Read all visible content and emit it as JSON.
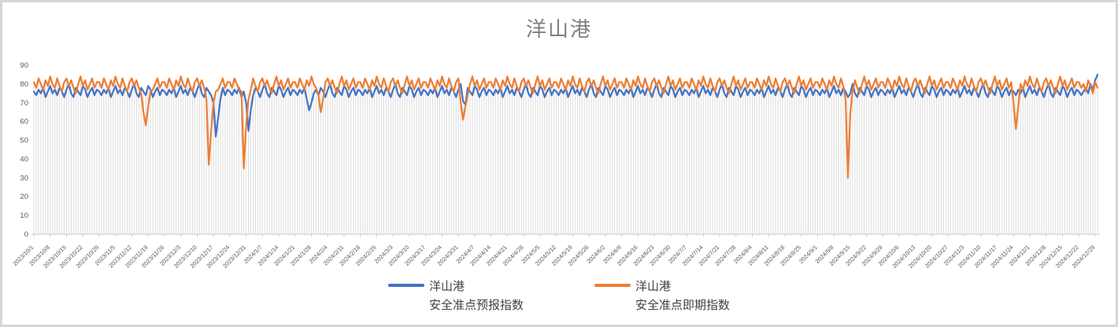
{
  "chart": {
    "title": "洋山港"
  },
  "chart_data": {
    "type": "line",
    "title": "洋山港",
    "x_frequency": "daily",
    "x_start": "2023/10/1",
    "x_end": "2024/12/31",
    "ylim": [
      0,
      90
    ],
    "y_tick_step": 10,
    "grid": "vertical drop lines at each daily point, no horizontal gridlines",
    "legend_position": "bottom-center",
    "drop_line_color": "#dcdcdc",
    "axis_color": "#c9c9c9",
    "tick_label_color": "#595959",
    "x_tick_labels": [
      "2023/10/1",
      "2023/10/8",
      "2023/10/15",
      "2023/10/22",
      "2023/10/29",
      "2023/11/5",
      "2023/11/12",
      "2023/11/19",
      "2023/11/26",
      "2023/12/3",
      "2023/12/10",
      "2023/12/17",
      "2023/12/24",
      "2023/12/31",
      "2024/1/7",
      "2024/1/14",
      "2024/1/21",
      "2024/1/28",
      "2024/2/4",
      "2024/2/11",
      "2024/2/18",
      "2024/2/25",
      "2024/3/3",
      "2024/3/10",
      "2024/3/17",
      "2024/3/24",
      "2024/3/31",
      "2024/4/7",
      "2024/4/14",
      "2024/4/21",
      "2024/4/28",
      "2024/5/5",
      "2024/5/12",
      "2024/5/19",
      "2024/5/26",
      "2024/6/2",
      "2024/6/9",
      "2024/6/16",
      "2024/6/23",
      "2024/6/30",
      "2024/7/7",
      "2024/7/14",
      "2024/7/21",
      "2024/7/28",
      "2024/8/4",
      "2024/8/11",
      "2024/8/18",
      "2024/8/25",
      "2024/9/1",
      "2024/9/8",
      "2024/9/15",
      "2024/9/22",
      "2024/9/29",
      "2024/10/6",
      "2024/10/13",
      "2024/10/20",
      "2024/10/27",
      "2024/11/3",
      "2024/11/10",
      "2024/11/17",
      "2024/11/24",
      "2024/12/1",
      "2024/12/8",
      "2024/12/15",
      "2024/12/22",
      "2024/12/29"
    ],
    "series": [
      {
        "name": "洋山港 安全准点预报指数",
        "name_line1": "洋山港",
        "name_line2": "安全准点预报指数",
        "color": "#4472C4",
        "values": [
          76,
          74,
          77,
          75,
          78,
          73,
          76,
          79,
          75,
          77,
          74,
          78,
          76,
          73,
          77,
          80,
          75,
          73,
          78,
          76,
          74,
          79,
          77,
          73,
          76,
          78,
          74,
          77,
          76,
          74,
          77,
          75,
          78,
          73,
          76,
          79,
          75,
          77,
          74,
          78,
          76,
          73,
          77,
          80,
          75,
          73,
          78,
          76,
          74,
          79,
          77,
          73,
          76,
          78,
          74,
          77,
          76,
          74,
          77,
          75,
          78,
          73,
          76,
          79,
          75,
          77,
          74,
          78,
          76,
          73,
          77,
          80,
          75,
          73,
          78,
          76,
          74,
          70,
          52,
          62,
          72,
          78,
          74,
          77,
          76,
          74,
          77,
          75,
          78,
          73,
          76,
          70,
          55,
          66,
          74,
          78,
          76,
          73,
          77,
          80,
          75,
          73,
          78,
          76,
          74,
          79,
          77,
          73,
          76,
          78,
          74,
          77,
          76,
          74,
          77,
          75,
          78,
          72,
          66,
          70,
          75,
          77,
          74,
          78,
          76,
          73,
          77,
          80,
          75,
          73,
          78,
          76,
          74,
          79,
          77,
          73,
          76,
          78,
          74,
          77,
          76,
          74,
          77,
          75,
          78,
          73,
          76,
          79,
          75,
          77,
          74,
          78,
          76,
          73,
          77,
          80,
          75,
          73,
          78,
          76,
          74,
          79,
          77,
          73,
          76,
          78,
          74,
          77,
          76,
          74,
          77,
          75,
          78,
          73,
          76,
          79,
          75,
          77,
          74,
          78,
          76,
          73,
          77,
          80,
          71,
          69,
          78,
          76,
          74,
          79,
          77,
          73,
          76,
          78,
          74,
          77,
          76,
          74,
          77,
          75,
          78,
          73,
          76,
          79,
          75,
          77,
          74,
          78,
          76,
          73,
          77,
          80,
          75,
          73,
          78,
          76,
          74,
          79,
          77,
          73,
          76,
          78,
          74,
          77,
          76,
          74,
          77,
          75,
          78,
          73,
          76,
          79,
          75,
          77,
          74,
          78,
          76,
          73,
          77,
          80,
          75,
          73,
          78,
          76,
          74,
          79,
          77,
          73,
          76,
          78,
          74,
          77,
          76,
          74,
          77,
          75,
          78,
          73,
          76,
          79,
          75,
          77,
          74,
          78,
          76,
          73,
          77,
          80,
          75,
          73,
          78,
          76,
          74,
          79,
          77,
          73,
          76,
          78,
          74,
          77,
          76,
          74,
          77,
          75,
          78,
          73,
          76,
          79,
          75,
          77,
          74,
          78,
          76,
          73,
          77,
          80,
          75,
          73,
          78,
          76,
          74,
          79,
          77,
          73,
          76,
          78,
          74,
          77,
          76,
          74,
          77,
          75,
          78,
          73,
          76,
          79,
          75,
          77,
          74,
          78,
          76,
          73,
          77,
          80,
          75,
          73,
          78,
          76,
          74,
          79,
          77,
          73,
          76,
          78,
          74,
          77,
          76,
          74,
          77,
          75,
          78,
          73,
          76,
          79,
          75,
          77,
          74,
          78,
          76,
          73,
          75,
          80,
          75,
          73,
          78,
          76,
          74,
          79,
          77,
          73,
          76,
          78,
          74,
          77,
          76,
          74,
          77,
          75,
          78,
          73,
          76,
          79,
          75,
          77,
          74,
          78,
          76,
          73,
          77,
          80,
          75,
          73,
          78,
          76,
          74,
          79,
          77,
          73,
          76,
          78,
          74,
          77,
          76,
          74,
          77,
          75,
          78,
          73,
          76,
          79,
          75,
          77,
          74,
          78,
          76,
          73,
          77,
          80,
          75,
          73,
          78,
          76,
          74,
          79,
          77,
          73,
          76,
          78,
          74,
          77,
          76,
          74,
          77,
          75,
          78,
          73,
          76,
          79,
          75,
          77,
          74,
          78,
          76,
          73,
          77,
          80,
          75,
          73,
          78,
          76,
          74,
          79,
          77,
          73,
          76,
          78,
          74,
          77,
          76,
          74,
          76,
          78,
          75,
          80,
          77,
          82,
          85
        ]
      },
      {
        "name": "洋山港 安全准点即期指数",
        "name_line1": "洋山港",
        "name_line2": "安全准点即期指数",
        "color": "#ED7D31",
        "values": [
          81,
          78,
          83,
          80,
          77,
          82,
          79,
          84,
          80,
          78,
          83,
          79,
          76,
          81,
          83,
          79,
          82,
          78,
          75,
          80,
          84,
          79,
          82,
          77,
          80,
          83,
          78,
          81,
          81,
          78,
          83,
          80,
          77,
          82,
          79,
          84,
          80,
          78,
          83,
          79,
          76,
          81,
          83,
          79,
          82,
          78,
          75,
          65,
          58,
          68,
          76,
          77,
          80,
          83,
          78,
          81,
          81,
          78,
          83,
          80,
          77,
          82,
          79,
          84,
          80,
          78,
          83,
          79,
          76,
          81,
          83,
          79,
          82,
          78,
          72,
          37,
          55,
          70,
          76,
          77,
          80,
          83,
          78,
          81,
          81,
          78,
          83,
          80,
          77,
          76,
          35,
          58,
          72,
          77,
          83,
          79,
          76,
          81,
          83,
          79,
          82,
          78,
          75,
          80,
          84,
          79,
          82,
          77,
          80,
          83,
          78,
          81,
          81,
          78,
          83,
          80,
          77,
          82,
          79,
          84,
          80,
          78,
          74,
          65,
          72,
          81,
          83,
          79,
          82,
          78,
          75,
          80,
          84,
          79,
          82,
          77,
          80,
          83,
          78,
          81,
          81,
          78,
          83,
          80,
          77,
          82,
          79,
          84,
          80,
          78,
          83,
          79,
          76,
          81,
          83,
          79,
          82,
          78,
          75,
          80,
          84,
          79,
          82,
          77,
          80,
          83,
          78,
          81,
          81,
          78,
          83,
          80,
          77,
          82,
          79,
          84,
          80,
          78,
          83,
          79,
          76,
          81,
          83,
          70,
          61,
          68,
          74,
          80,
          84,
          79,
          82,
          77,
          80,
          83,
          78,
          81,
          81,
          78,
          83,
          80,
          77,
          82,
          79,
          84,
          80,
          78,
          83,
          79,
          76,
          81,
          83,
          79,
          82,
          78,
          75,
          80,
          84,
          79,
          82,
          77,
          80,
          83,
          78,
          81,
          81,
          78,
          83,
          80,
          77,
          82,
          79,
          84,
          80,
          78,
          83,
          79,
          76,
          81,
          83,
          79,
          82,
          78,
          75,
          80,
          84,
          79,
          82,
          77,
          80,
          83,
          78,
          81,
          81,
          78,
          83,
          80,
          77,
          82,
          79,
          84,
          80,
          78,
          83,
          79,
          76,
          81,
          83,
          79,
          82,
          78,
          75,
          80,
          84,
          79,
          82,
          77,
          80,
          83,
          78,
          81,
          81,
          78,
          83,
          80,
          77,
          82,
          79,
          84,
          80,
          78,
          83,
          79,
          76,
          81,
          83,
          79,
          82,
          78,
          75,
          80,
          84,
          79,
          82,
          77,
          80,
          83,
          78,
          81,
          81,
          78,
          83,
          80,
          77,
          82,
          79,
          84,
          80,
          78,
          83,
          79,
          76,
          81,
          83,
          79,
          82,
          78,
          75,
          80,
          84,
          79,
          82,
          77,
          80,
          83,
          78,
          81,
          81,
          78,
          83,
          80,
          77,
          82,
          79,
          84,
          80,
          78,
          83,
          79,
          72,
          30,
          65,
          76,
          82,
          78,
          75,
          80,
          84,
          79,
          82,
          77,
          80,
          83,
          78,
          81,
          81,
          78,
          83,
          80,
          77,
          82,
          79,
          84,
          80,
          78,
          83,
          79,
          76,
          81,
          83,
          79,
          82,
          78,
          75,
          80,
          84,
          79,
          82,
          77,
          80,
          83,
          78,
          81,
          81,
          78,
          83,
          80,
          77,
          82,
          79,
          84,
          80,
          78,
          83,
          79,
          76,
          81,
          83,
          79,
          82,
          78,
          75,
          80,
          84,
          79,
          82,
          77,
          80,
          83,
          78,
          81,
          70,
          56,
          68,
          80,
          77,
          82,
          79,
          84,
          80,
          78,
          83,
          79,
          76,
          81,
          83,
          79,
          82,
          78,
          75,
          80,
          84,
          79,
          82,
          77,
          80,
          83,
          78,
          81,
          81,
          78,
          80,
          76,
          82,
          79,
          75,
          81,
          78
        ]
      }
    ]
  }
}
